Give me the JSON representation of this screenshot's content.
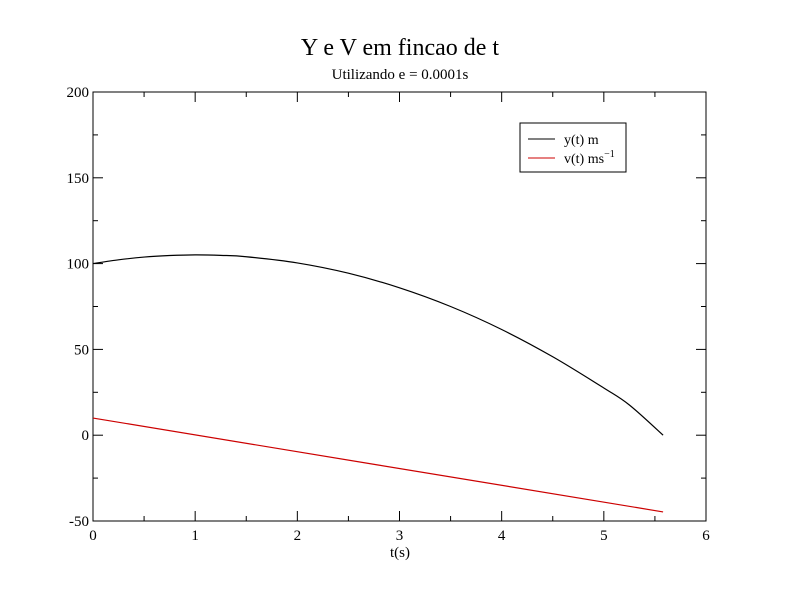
{
  "chart_data": {
    "type": "line",
    "title": "Y e V em fincao de t",
    "subtitle": "Utilizando e = 0.0001s",
    "xlabel": "t(s)",
    "ylabel": "",
    "xlim": [
      0,
      6
    ],
    "ylim": [
      -50,
      200
    ],
    "xticks": [
      0,
      1,
      2,
      3,
      4,
      5,
      6
    ],
    "yticks": [
      -50,
      0,
      50,
      100,
      150,
      200
    ],
    "xtick_labels": [
      "0",
      "1",
      "2",
      "3",
      "4",
      "5",
      "6"
    ],
    "ytick_labels": [
      "-50",
      "0",
      "50",
      "100",
      "150",
      "200"
    ],
    "grid": false,
    "legend_position": "top-right",
    "series": [
      {
        "name": "y(t) m",
        "name_base": "y(t) m",
        "color": "#000000",
        "x": [
          0,
          0.25,
          0.5,
          0.75,
          1.0,
          1.25,
          1.5,
          2.0,
          2.5,
          3.0,
          3.5,
          4.0,
          4.5,
          5.0,
          5.25,
          5.58
        ],
        "y": [
          100,
          102.2,
          103.8,
          104.7,
          105.1,
          104.8,
          104.0,
          100.4,
          94.4,
          85.9,
          75.0,
          61.6,
          45.7,
          27.5,
          17.6,
          0
        ]
      },
      {
        "name": "v(t) ms⁻¹",
        "name_base": "v(t) ms",
        "name_sup": "−1",
        "color": "#cc0000",
        "x": [
          0,
          5.58
        ],
        "y": [
          10,
          -44.7
        ]
      }
    ]
  }
}
